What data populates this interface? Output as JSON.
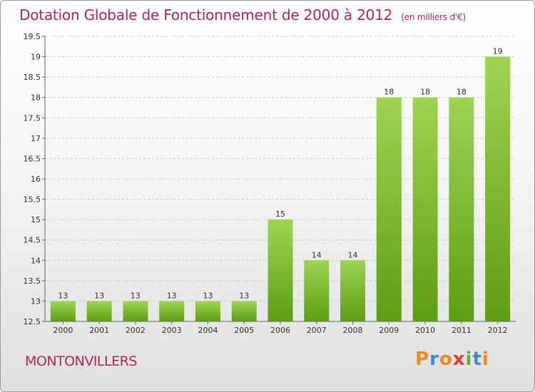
{
  "header": {
    "title": "Dotation Globale de Fonctionnement de 2000 à 2012",
    "subtitle": "(en milliers d'€)"
  },
  "footer": {
    "commune": "MONTONVILLERS",
    "logo_letters": [
      "P",
      "r",
      "o",
      "x",
      "i",
      "t",
      "i"
    ],
    "logo_colors": [
      "#f08a1c",
      "#3a8ed8",
      "#f08a1c",
      "#e23b3b",
      "#5bb131",
      "#3a8ed8",
      "#f08a1c"
    ]
  },
  "chart_data": {
    "type": "bar",
    "title": "Dotation Globale de Fonctionnement de 2000 à 2012",
    "xlabel": "",
    "ylabel": "",
    "categories": [
      "2000",
      "2001",
      "2002",
      "2003",
      "2004",
      "2005",
      "2006",
      "2007",
      "2008",
      "2009",
      "2010",
      "2011",
      "2012"
    ],
    "values": [
      13,
      13,
      13,
      13,
      13,
      13,
      15,
      14,
      14,
      18,
      18,
      18,
      19
    ],
    "data_labels": [
      "13",
      "13",
      "13",
      "13",
      "13",
      "13",
      "15",
      "14",
      "14",
      "18",
      "18",
      "18",
      "19"
    ],
    "ylim": [
      12.5,
      19.5
    ],
    "yticks": [
      12.5,
      13,
      13.5,
      14,
      14.5,
      15,
      15.5,
      16,
      16.5,
      17,
      17.5,
      18,
      18.5,
      19,
      19.5
    ],
    "ytick_labels": [
      "12.5",
      "13",
      "13.5",
      "14",
      "14.5",
      "15",
      "15.5",
      "16",
      "16.5",
      "17",
      "17.5",
      "18",
      "18.5",
      "19",
      "19.5"
    ],
    "grid": "horizontal dashed",
    "bar_color_top": "#9fd451",
    "bar_color_bottom": "#5c9e12"
  }
}
